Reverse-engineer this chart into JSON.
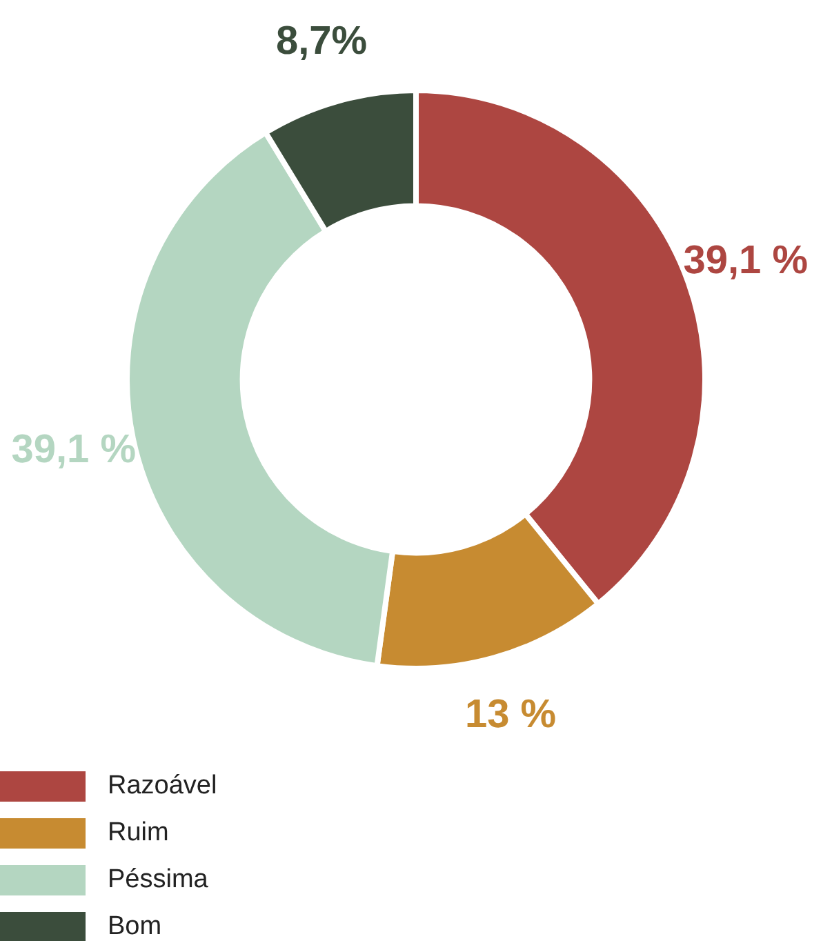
{
  "chart_data": {
    "type": "donut",
    "categories": [
      "Razoável",
      "Ruim",
      "Péssima",
      "Bom"
    ],
    "values": [
      39.1,
      13,
      39.1,
      8.7
    ],
    "colors": [
      "#ad4641",
      "#c78b31",
      "#b4d6c1",
      "#3b4d3c"
    ],
    "value_labels": [
      "39,1 %",
      "13 %",
      "39,1 %",
      "8,7%"
    ],
    "legend": "bottom left"
  }
}
